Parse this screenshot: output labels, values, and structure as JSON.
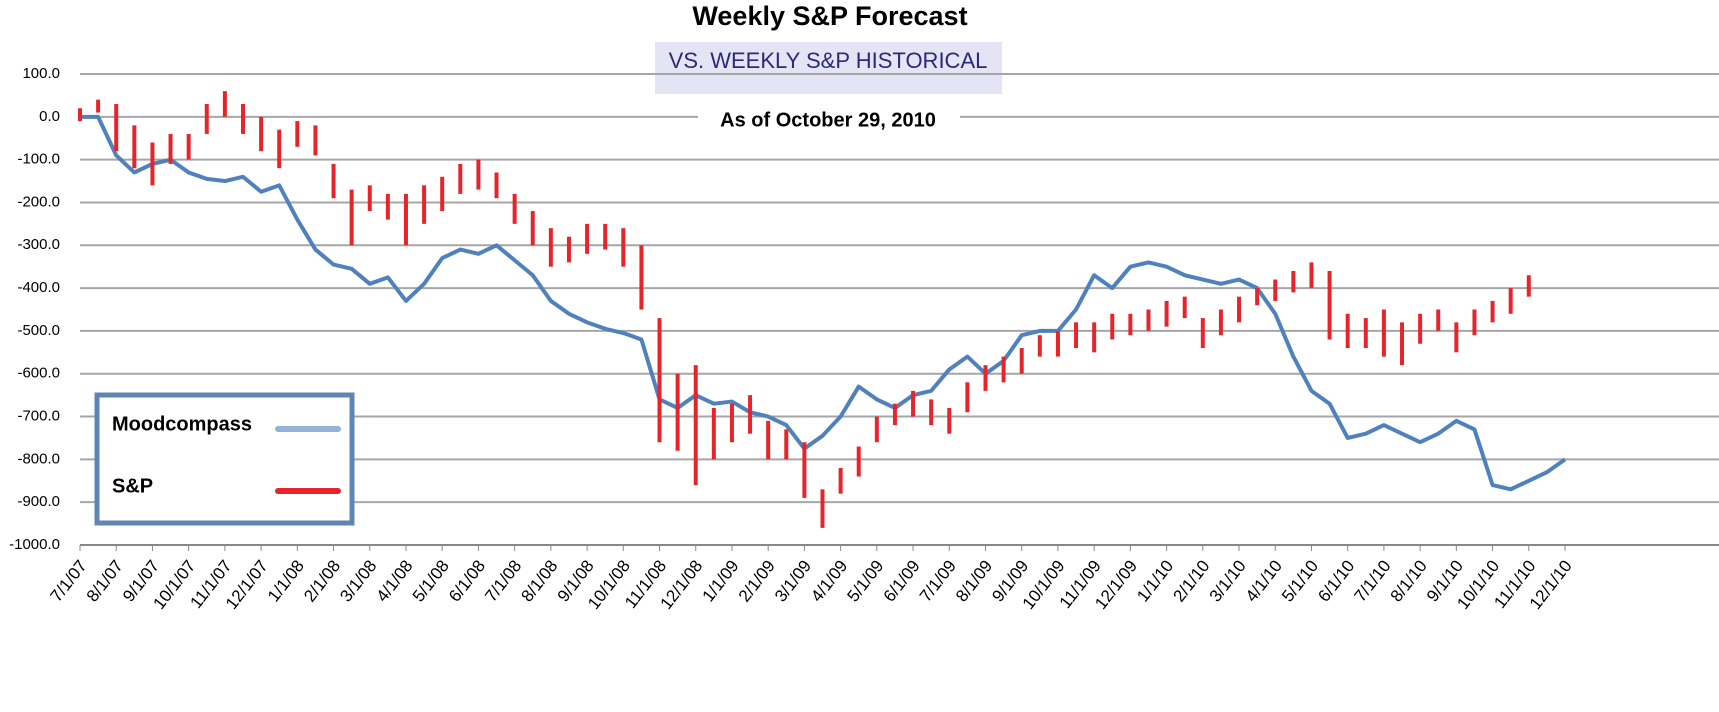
{
  "chart_data": {
    "type": "line",
    "title": "Weekly S&P Forecast",
    "subtitle": "VS. WEEKLY S&P HISTORICAL",
    "annotation": "As of October 29, 2010",
    "categories": [
      "7/1/07",
      null,
      "8/1/07",
      null,
      "9/1/07",
      null,
      "10/1/07",
      null,
      "11/1/07",
      null,
      "12/1/07",
      null,
      "1/1/08",
      null,
      "2/1/08",
      null,
      "3/1/08",
      null,
      "4/1/08",
      null,
      "5/1/08",
      null,
      "6/1/08",
      null,
      "7/1/08",
      null,
      "8/1/08",
      null,
      "9/1/08",
      null,
      "10/1/08",
      null,
      "11/1/08",
      null,
      "12/1/08",
      null,
      "1/1/09",
      null,
      "2/1/09",
      null,
      "3/1/09",
      null,
      "4/1/09",
      null,
      "5/1/09",
      null,
      "6/1/09",
      null,
      "7/1/09",
      null,
      "8/1/09",
      null,
      "9/1/09",
      null,
      "10/1/09",
      null,
      "11/1/09",
      null,
      "12/1/09",
      null,
      "1/1/10",
      null,
      "2/1/10",
      null,
      "3/1/10",
      null,
      "4/1/10",
      null,
      "5/1/10",
      null,
      "6/1/10",
      null,
      "7/1/10",
      null,
      "8/1/10",
      null,
      "9/1/10",
      null,
      "10/1/10",
      null,
      "11/1/10",
      null,
      "12/1/10"
    ],
    "series": [
      {
        "name": "Moodcompass",
        "color": "#4f81bd",
        "values": [
          0,
          0,
          -90,
          -130,
          -110,
          -100,
          -130,
          -145,
          -150,
          -140,
          -175,
          -160,
          -240,
          -310,
          -345,
          -355,
          -390,
          -375,
          -430,
          -390,
          -330,
          -310,
          -320,
          -300,
          -335,
          -370,
          -430,
          -460,
          -480,
          -495,
          -505,
          -520,
          -660,
          -680,
          -650,
          -670,
          -665,
          -690,
          -700,
          -720,
          -775,
          -745,
          -700,
          -630,
          -660,
          -680,
          -650,
          -640,
          -590,
          -560,
          -600,
          -570,
          -510,
          -500,
          -500,
          -450,
          -370,
          -400,
          -350,
          -340,
          -350,
          -370,
          -380,
          -390,
          -380,
          -400,
          -460,
          -560,
          -640,
          -670,
          -750,
          -740,
          -720,
          -740,
          -760,
          -740,
          -710,
          -730,
          -860,
          -870,
          -850,
          -830,
          -800
        ]
      },
      {
        "name": "S&P",
        "color": "#e8242b",
        "kind": "high-low",
        "high": [
          20,
          40,
          30,
          -20,
          -60,
          -40,
          -40,
          30,
          60,
          30,
          0,
          -30,
          -10,
          -20,
          -110,
          -170,
          -160,
          -180,
          -180,
          -160,
          -140,
          -110,
          -100,
          -130,
          -180,
          -220,
          -260,
          -280,
          -250,
          -250,
          -260,
          -300,
          -470,
          -600,
          -580,
          -680,
          -670,
          -650,
          -710,
          -730,
          -760,
          -870,
          -820,
          -770,
          -700,
          -670,
          -640,
          -660,
          -680,
          -620,
          -580,
          -560,
          -540,
          -510,
          -500,
          -480,
          -480,
          -460,
          -460,
          -450,
          -430,
          -420,
          -470,
          -450,
          -420,
          -400,
          -380,
          -360,
          -340,
          -360,
          -460,
          -470,
          -450,
          -480,
          -460,
          -450,
          -480,
          -450,
          -430,
          -400,
          -370,
          null,
          null
        ],
        "low": [
          -10,
          10,
          -80,
          -120,
          -160,
          -110,
          -100,
          -40,
          0,
          -40,
          -80,
          -120,
          -70,
          -90,
          -190,
          -300,
          -220,
          -240,
          -300,
          -250,
          -220,
          -180,
          -170,
          -190,
          -250,
          -300,
          -350,
          -340,
          -320,
          -310,
          -350,
          -450,
          -760,
          -780,
          -860,
          -800,
          -760,
          -740,
          -800,
          -800,
          -890,
          -960,
          -880,
          -840,
          -760,
          -720,
          -700,
          -720,
          -740,
          -690,
          -640,
          -620,
          -600,
          -560,
          -560,
          -540,
          -550,
          -520,
          -510,
          -500,
          -490,
          -470,
          -540,
          -510,
          -480,
          -440,
          -430,
          -410,
          -400,
          -520,
          -540,
          -540,
          -560,
          -580,
          -530,
          -500,
          -550,
          -510,
          -480,
          -460,
          -420,
          null,
          null
        ]
      }
    ],
    "ylim": [
      -1000,
      100
    ],
    "yticks": [
      {
        "value": 100,
        "label": "100.0"
      },
      {
        "value": 0,
        "label": "0.0"
      },
      {
        "value": -100,
        "label": "-100.0"
      },
      {
        "value": -200,
        "label": "-200.0"
      },
      {
        "value": -300,
        "label": "-300.0"
      },
      {
        "value": -400,
        "label": "-400.0"
      },
      {
        "value": -500,
        "label": "-500.0"
      },
      {
        "value": -600,
        "label": "-600.0"
      },
      {
        "value": -700,
        "label": "-700.0"
      },
      {
        "value": -800,
        "label": "-800.0"
      },
      {
        "value": -900,
        "label": "-900.0"
      },
      {
        "value": -1000,
        "label": "-1000.0"
      }
    ],
    "grid": true,
    "legend": "lower left"
  }
}
